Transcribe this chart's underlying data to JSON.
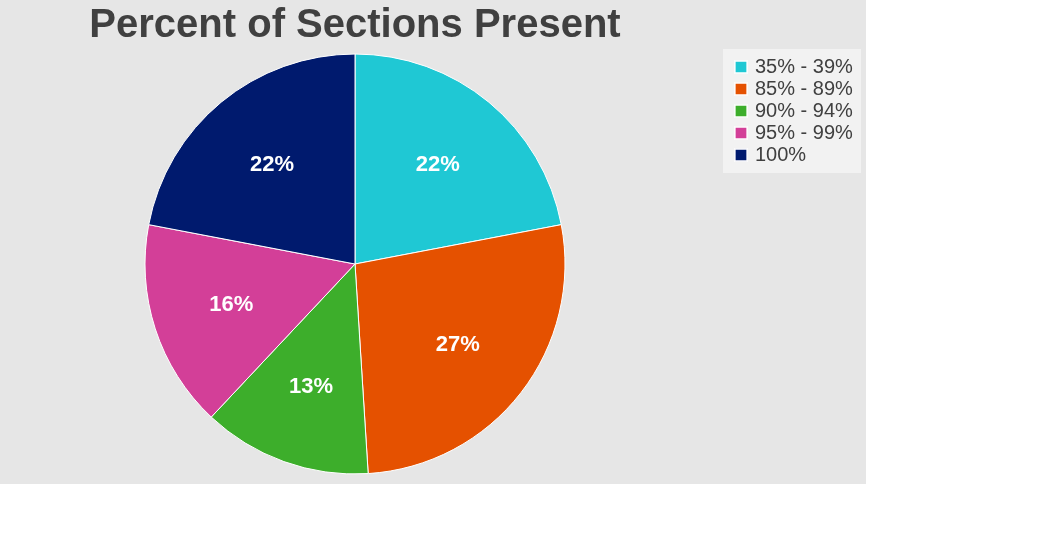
{
  "chart_data": {
    "type": "pie",
    "title": "Percent of Sections Present",
    "categories": [
      "35% - 39%",
      "85% - 89%",
      "90% - 94%",
      "95% - 99%",
      "100%"
    ],
    "values": [
      22,
      27,
      13,
      16,
      22
    ],
    "value_labels": [
      "22%",
      "27%",
      "13%",
      "16%",
      "22%"
    ],
    "colors": [
      "#1fc8d4",
      "#e55100",
      "#3dae2b",
      "#d33f98",
      "#001a6e"
    ],
    "legend": "right"
  }
}
